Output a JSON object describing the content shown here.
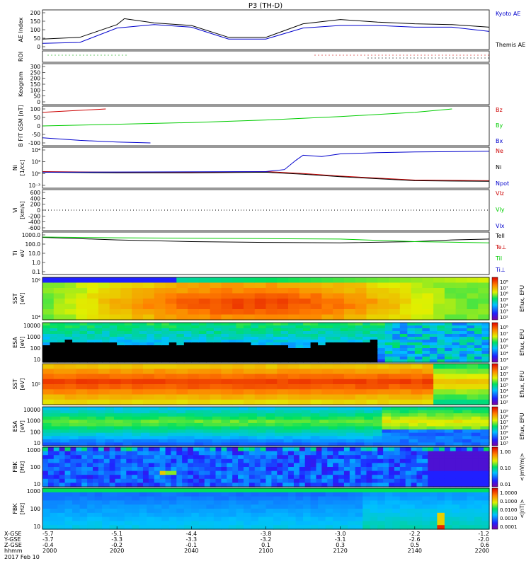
{
  "title": "P3 (TH-D)",
  "date": "2017 Feb 10",
  "time_axis": {
    "ticks": [
      "2000",
      "2020",
      "2040",
      "2100",
      "2120",
      "2140",
      "2200"
    ],
    "rows": [
      {
        "label": "X-GSE",
        "values": [
          "-5.7",
          "-5.1",
          "-4.4",
          "-3.8",
          "-3.0",
          "-2.2",
          "-1.2"
        ]
      },
      {
        "label": "Y-GSE",
        "values": [
          "-3.7",
          "-3.3",
          "-3.3",
          "-3.2",
          "-3.1",
          "-2.6",
          "-2.0"
        ]
      },
      {
        "label": "Z-GSE",
        "values": [
          "-0.4",
          "-0.2",
          "-0.1",
          "0.1",
          "0.3",
          "0.5",
          "0.6"
        ]
      },
      {
        "label": "hhmm",
        "values": [
          "2000",
          "2020",
          "2040",
          "2100",
          "2120",
          "2140",
          "2200"
        ]
      }
    ]
  },
  "chart_data": [
    {
      "type": "line",
      "id": "ae",
      "ylabel": "AE Index",
      "ylim": [
        0,
        200
      ],
      "yticks": [
        "200",
        "150",
        "100",
        "50",
        "0"
      ],
      "legend": [
        "Kyoto AE",
        "Themis AE"
      ],
      "series": [
        {
          "name": "Kyoto AE",
          "color": "#0000cc",
          "t": [
            0,
            10,
            20,
            30,
            40,
            50,
            60,
            70,
            80,
            90,
            100,
            110,
            120
          ],
          "values": [
            20,
            25,
            110,
            130,
            115,
            45,
            45,
            110,
            125,
            125,
            115,
            115,
            90
          ]
        },
        {
          "name": "Themis AE",
          "color": "#000000",
          "t": [
            0,
            10,
            20,
            22,
            30,
            40,
            50,
            60,
            70,
            80,
            90,
            100,
            110,
            120
          ],
          "values": [
            45,
            55,
            130,
            165,
            140,
            125,
            55,
            55,
            135,
            160,
            145,
            135,
            130,
            115
          ]
        }
      ]
    },
    {
      "type": "scatter",
      "id": "roi",
      "ylabel": "ROI"
    },
    {
      "type": "line",
      "id": "keogram",
      "ylabel": "Keogram",
      "ylim": [
        0,
        300
      ],
      "yticks": [
        "300",
        "250",
        "200",
        "150",
        "100",
        "50",
        "0"
      ]
    },
    {
      "type": "line",
      "id": "bfield",
      "ylabel": "B FIT GSM [nT]",
      "ylim": [
        -100,
        100
      ],
      "yticks": [
        "100",
        "50",
        "0",
        "-50",
        "-100"
      ],
      "legend": [
        "Bz",
        "By",
        "Bx"
      ],
      "series": [
        {
          "name": "Bz",
          "color": "#cc0000",
          "t": [
            0,
            17
          ],
          "values": [
            80,
            100
          ]
        },
        {
          "name": "By",
          "color": "#00cc00",
          "t": [
            0,
            20,
            40,
            60,
            80,
            100,
            110
          ],
          "values": [
            0,
            10,
            20,
            35,
            55,
            80,
            100
          ]
        },
        {
          "name": "Bx",
          "color": "#0000cc",
          "t": [
            0,
            10,
            20,
            29
          ],
          "values": [
            -70,
            -85,
            -95,
            -100
          ]
        }
      ]
    },
    {
      "type": "line",
      "id": "density",
      "ylabel": "Ni",
      "ylabel_units": "[1/cc]",
      "yscale": "log",
      "yticks": [
        "10⁴",
        "10³",
        "10⁰",
        "10⁻³"
      ],
      "legend": [
        "Ne",
        "Ni",
        "Npot"
      ],
      "series": [
        {
          "name": "Ne",
          "color": "#cc0000",
          "t": [
            0,
            20,
            40,
            60,
            70,
            80,
            100,
            120
          ],
          "values": [
            0.35,
            0.3,
            0.3,
            0.35,
            0.2,
            0.0,
            -0.3,
            -0.35
          ]
        },
        {
          "name": "Ni",
          "color": "#000000",
          "t": [
            0,
            20,
            40,
            60,
            70,
            80,
            100,
            120
          ],
          "values": [
            0.3,
            0.25,
            0.25,
            0.3,
            0.15,
            -0.05,
            -0.35,
            -0.4
          ]
        },
        {
          "name": "Npot",
          "color": "#0000cc",
          "t": [
            0,
            60,
            65,
            68,
            70,
            75,
            80,
            90,
            100,
            120
          ],
          "values": [
            0.3,
            0.35,
            0.5,
            1.2,
            1.6,
            1.5,
            1.7,
            1.8,
            1.85,
            1.9
          ]
        }
      ]
    },
    {
      "type": "line",
      "id": "velocity",
      "ylabel": "Vi",
      "ylabel_units": "[km/s]",
      "ylim": [
        -800,
        800
      ],
      "yticks": [
        "600",
        "400",
        "200",
        "0",
        "-200",
        "-400",
        "-600"
      ],
      "legend": [
        "Vlz",
        "Vly",
        "Vlx"
      ]
    },
    {
      "type": "line",
      "id": "temperature",
      "ylabel": "Ti",
      "ylabel_units": "eV",
      "yscale": "log",
      "yticks": [
        "1000.0",
        "100.0",
        "10.0",
        "1.0",
        "0.1"
      ],
      "legend": [
        "Tell",
        "Te⊥",
        "Til",
        "Ti⊥"
      ],
      "series": [
        {
          "name": "Tell",
          "color": "#000000",
          "t": [
            0,
            20,
            40,
            60,
            80,
            100,
            110,
            120
          ],
          "values": [
            3.1,
            2.8,
            2.6,
            2.5,
            2.45,
            2.6,
            2.8,
            2.9
          ]
        },
        {
          "name": "Til",
          "color": "#00cc00",
          "t": [
            0,
            20,
            40,
            60,
            80,
            100,
            120
          ],
          "values": [
            3.15,
            3.05,
            3.0,
            2.95,
            2.9,
            2.6,
            2.45
          ]
        }
      ]
    },
    {
      "type": "heatmap",
      "id": "sst_i",
      "ylabel": "SST",
      "ylabel_units": "[eV]",
      "yticks": [
        "10⁶",
        "10⁴"
      ],
      "colorbar_label": "Eflux, EFU",
      "colorbar_ticks": [
        "10⁸",
        "10⁷",
        "10⁶",
        "10⁵",
        "10⁴",
        "10³",
        "10²"
      ]
    },
    {
      "type": "heatmap",
      "id": "esa_i",
      "ylabel": "ESA",
      "ylabel_units": "[eV]",
      "yticks": [
        "10000",
        "1000",
        "100",
        "10"
      ],
      "colorbar_label": "Eflux, EFU",
      "colorbar_ticks": [
        "10⁸",
        "10⁷",
        "10⁶",
        "10⁵",
        "10⁴",
        "10³"
      ]
    },
    {
      "type": "heatmap",
      "id": "sst_e",
      "ylabel": "SST",
      "ylabel_units": "[eV]",
      "yticks": [
        "10⁵"
      ],
      "colorbar_label": "Eflux, EFU",
      "colorbar_ticks": [
        "10⁸",
        "10⁷",
        "10⁶",
        "10⁵",
        "10⁴",
        "10³",
        "10²"
      ]
    },
    {
      "type": "heatmap",
      "id": "esa_e",
      "ylabel": "ESA",
      "ylabel_units": "[eV]",
      "yticks": [
        "10000",
        "1000",
        "100",
        "10"
      ],
      "colorbar_label": "Eflux, EFU",
      "colorbar_ticks": [
        "10⁹",
        "10⁸",
        "10⁷",
        "10⁶",
        "10⁵",
        "10⁴",
        "10³"
      ]
    },
    {
      "type": "heatmap",
      "id": "fbk_e",
      "ylabel": "FBK",
      "ylabel_units": "[Hz]",
      "yticks": [
        "1000",
        "100",
        "10"
      ],
      "colorbar_label": "<|mV/m|>",
      "colorbar_ticks": [
        "1.00",
        "0.10",
        "0.01"
      ]
    },
    {
      "type": "heatmap",
      "id": "fbk_b",
      "ylabel": "FBK",
      "ylabel_units": "[Hz]",
      "yticks": [
        "1000",
        "100",
        "10"
      ],
      "colorbar_label": "<|nT|>",
      "colorbar_ticks": [
        "1.0000",
        "0.1000",
        "0.0100",
        "0.0010",
        "0.0001"
      ]
    }
  ]
}
